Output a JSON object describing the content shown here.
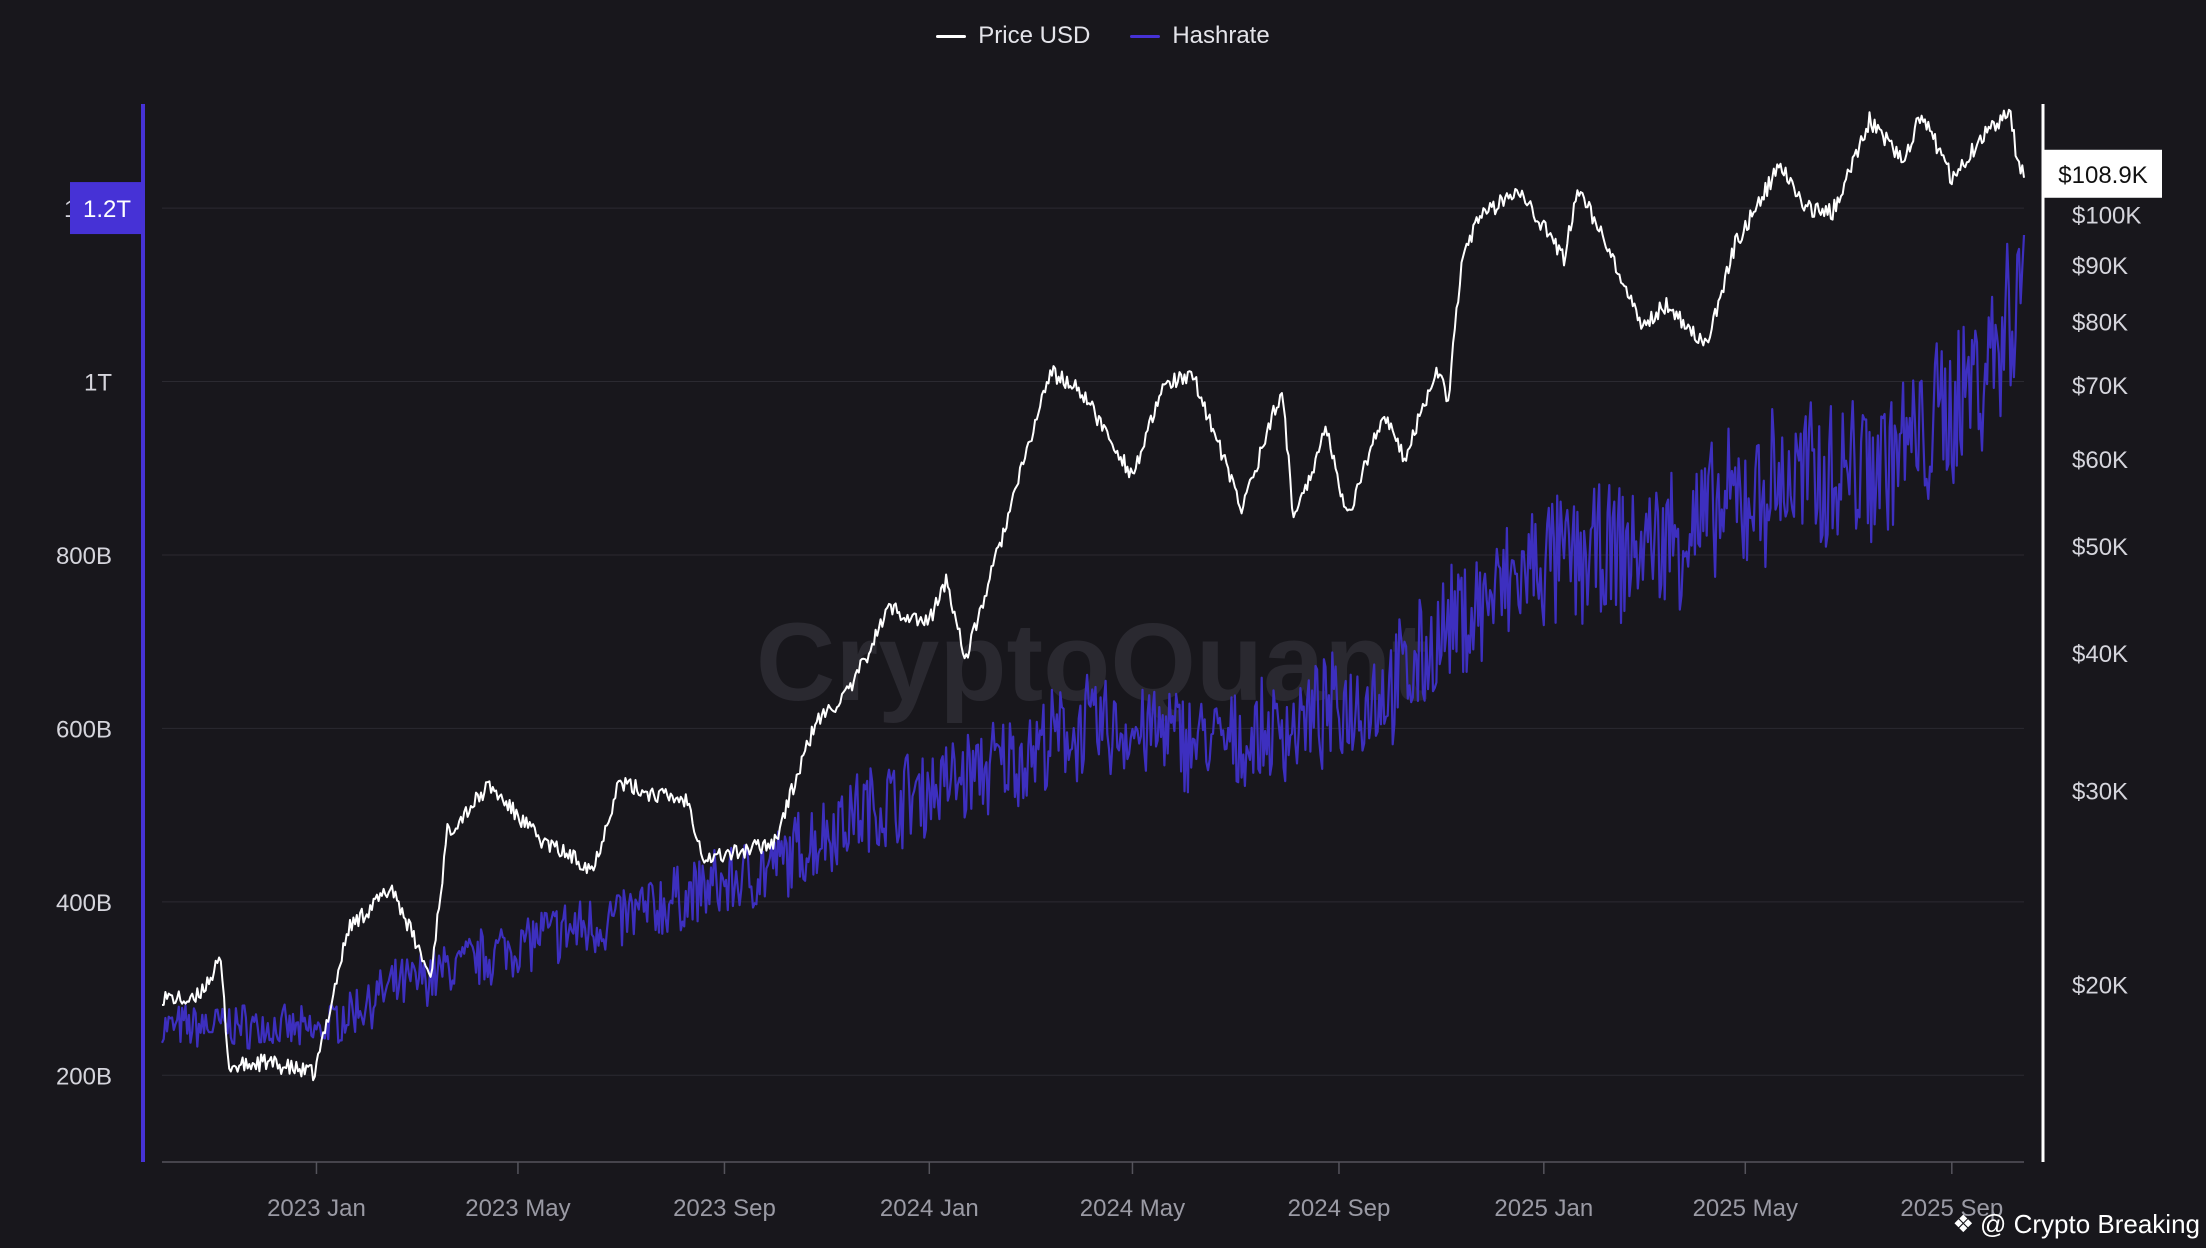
{
  "chart_data": {
    "type": "line",
    "title": "",
    "watermark": "CryptoQuant",
    "credit": "@ Crypto Breaking",
    "legend": {
      "placement": "top-center"
    },
    "grid": true,
    "colors": {
      "background": "#18171c",
      "price": "#ffffff",
      "hashrate": "#3d2fbf",
      "hashrate_axis": "#4632d6",
      "grid": "#2b2a31",
      "tick_text": "#d5d5dc",
      "x_tick_text": "#9a9aa4"
    },
    "x_axis": {
      "range": [
        "2022-10-01",
        "2025-10-14"
      ],
      "ticks": [
        {
          "date": "2023-01-01",
          "label": "2023 Jan"
        },
        {
          "date": "2023-05-01",
          "label": "2023 May"
        },
        {
          "date": "2023-09-01",
          "label": "2023 Sep"
        },
        {
          "date": "2024-01-01",
          "label": "2024 Jan"
        },
        {
          "date": "2024-05-01",
          "label": "2024 May"
        },
        {
          "date": "2024-09-01",
          "label": "2024 Sep"
        },
        {
          "date": "2025-01-01",
          "label": "2025 Jan"
        },
        {
          "date": "2025-05-01",
          "label": "2025 May"
        },
        {
          "date": "2025-09-01",
          "label": "2025 Sep"
        }
      ]
    },
    "y_left": {
      "series": "Hashrate",
      "scale": "linear",
      "range": [
        100000000000,
        1320000000000
      ],
      "ticks": [
        {
          "value": 200000000000,
          "label": "200B"
        },
        {
          "value": 400000000000,
          "label": "400B"
        },
        {
          "value": 600000000000,
          "label": "600B"
        },
        {
          "value": 800000000000,
          "label": "800B"
        },
        {
          "value": 1000000000000,
          "label": "1T"
        },
        {
          "value": 1200000000000,
          "label": "1.2T"
        }
      ],
      "current_value": 1200000000000,
      "current_label": "1.2T"
    },
    "y_right": {
      "series": "Price USD",
      "scale": "log",
      "range": [
        13800,
        126000
      ],
      "ticks": [
        {
          "value": 20000,
          "label": "$20K"
        },
        {
          "value": 30000,
          "label": "$30K"
        },
        {
          "value": 40000,
          "label": "$40K"
        },
        {
          "value": 50000,
          "label": "$50K"
        },
        {
          "value": 60000,
          "label": "$60K"
        },
        {
          "value": 70000,
          "label": "$70K"
        },
        {
          "value": 80000,
          "label": "$80K"
        },
        {
          "value": 90000,
          "label": "$90K"
        },
        {
          "value": 100000,
          "label": "$100K"
        }
      ],
      "current_value": 108900,
      "current_label": "$108.9K"
    },
    "series": [
      {
        "name": "Price USD",
        "axis": "right",
        "points": [
          [
            "2022-10-01",
            19500
          ],
          [
            "2022-10-20",
            19300
          ],
          [
            "2022-11-05",
            21000
          ],
          [
            "2022-11-10",
            16800
          ],
          [
            "2022-12-01",
            17000
          ],
          [
            "2022-12-31",
            16600
          ],
          [
            "2023-01-20",
            22500
          ],
          [
            "2023-02-15",
            24500
          ],
          [
            "2023-03-10",
            20300
          ],
          [
            "2023-03-20",
            27500
          ],
          [
            "2023-04-14",
            30300
          ],
          [
            "2023-05-15",
            27000
          ],
          [
            "2023-06-15",
            25500
          ],
          [
            "2023-06-30",
            30500
          ],
          [
            "2023-07-20",
            29800
          ],
          [
            "2023-08-10",
            29400
          ],
          [
            "2023-08-20",
            26000
          ],
          [
            "2023-09-15",
            26500
          ],
          [
            "2023-10-01",
            27000
          ],
          [
            "2023-10-25",
            34500
          ],
          [
            "2023-11-15",
            37000
          ],
          [
            "2023-12-08",
            44000
          ],
          [
            "2023-12-31",
            42500
          ],
          [
            "2024-01-11",
            46500
          ],
          [
            "2024-01-23",
            39500
          ],
          [
            "2024-02-15",
            52000
          ],
          [
            "2024-03-13",
            72000
          ],
          [
            "2024-04-01",
            69000
          ],
          [
            "2024-04-15",
            63500
          ],
          [
            "2024-05-01",
            58000
          ],
          [
            "2024-05-21",
            70500
          ],
          [
            "2024-06-07",
            71000
          ],
          [
            "2024-07-05",
            54000
          ],
          [
            "2024-07-29",
            69500
          ],
          [
            "2024-08-05",
            53000
          ],
          [
            "2024-08-25",
            64000
          ],
          [
            "2024-09-06",
            53000
          ],
          [
            "2024-09-27",
            66000
          ],
          [
            "2024-10-10",
            60000
          ],
          [
            "2024-10-29",
            72500
          ],
          [
            "2024-11-05",
            68000
          ],
          [
            "2024-11-13",
            91000
          ],
          [
            "2024-11-22",
            98500
          ],
          [
            "2024-12-17",
            106000
          ],
          [
            "2025-01-13",
            91000
          ],
          [
            "2025-01-21",
            106000
          ],
          [
            "2025-02-03",
            97000
          ],
          [
            "2025-02-28",
            79000
          ],
          [
            "2025-03-15",
            83000
          ],
          [
            "2025-04-08",
            76000
          ],
          [
            "2025-04-25",
            94000
          ],
          [
            "2025-05-22",
            111000
          ],
          [
            "2025-06-05",
            101500
          ],
          [
            "2025-06-22",
            100500
          ],
          [
            "2025-07-14",
            122000
          ],
          [
            "2025-08-03",
            112000
          ],
          [
            "2025-08-14",
            123500
          ],
          [
            "2025-09-01",
            108000
          ],
          [
            "2025-09-18",
            117000
          ],
          [
            "2025-10-06",
            124500
          ],
          [
            "2025-10-10",
            111000
          ],
          [
            "2025-10-14",
            108900
          ]
        ]
      },
      {
        "name": "Hashrate",
        "axis": "left",
        "points": [
          [
            "2022-10-01",
            255000000000
          ],
          [
            "2022-11-15",
            258000000000
          ],
          [
            "2023-01-01",
            250000000000
          ],
          [
            "2023-02-15",
            300000000000
          ],
          [
            "2023-04-01",
            330000000000
          ],
          [
            "2023-05-15",
            360000000000
          ],
          [
            "2023-07-01",
            380000000000
          ],
          [
            "2023-08-15",
            410000000000
          ],
          [
            "2023-10-01",
            440000000000
          ],
          [
            "2023-11-15",
            500000000000
          ],
          [
            "2024-01-01",
            530000000000
          ],
          [
            "2024-02-15",
            560000000000
          ],
          [
            "2024-04-01",
            600000000000
          ],
          [
            "2024-05-15",
            595000000000
          ],
          [
            "2024-07-01",
            580000000000
          ],
          [
            "2024-08-15",
            610000000000
          ],
          [
            "2024-10-01",
            645000000000
          ],
          [
            "2024-11-15",
            730000000000
          ],
          [
            "2025-01-01",
            790000000000
          ],
          [
            "2025-02-15",
            800000000000
          ],
          [
            "2025-04-01",
            830000000000
          ],
          [
            "2025-05-15",
            880000000000
          ],
          [
            "2025-07-01",
            900000000000
          ],
          [
            "2025-08-15",
            930000000000
          ],
          [
            "2025-09-15",
            1010000000000
          ],
          [
            "2025-10-01",
            1050000000000
          ],
          [
            "2025-10-14",
            1150000000000
          ]
        ]
      }
    ]
  }
}
